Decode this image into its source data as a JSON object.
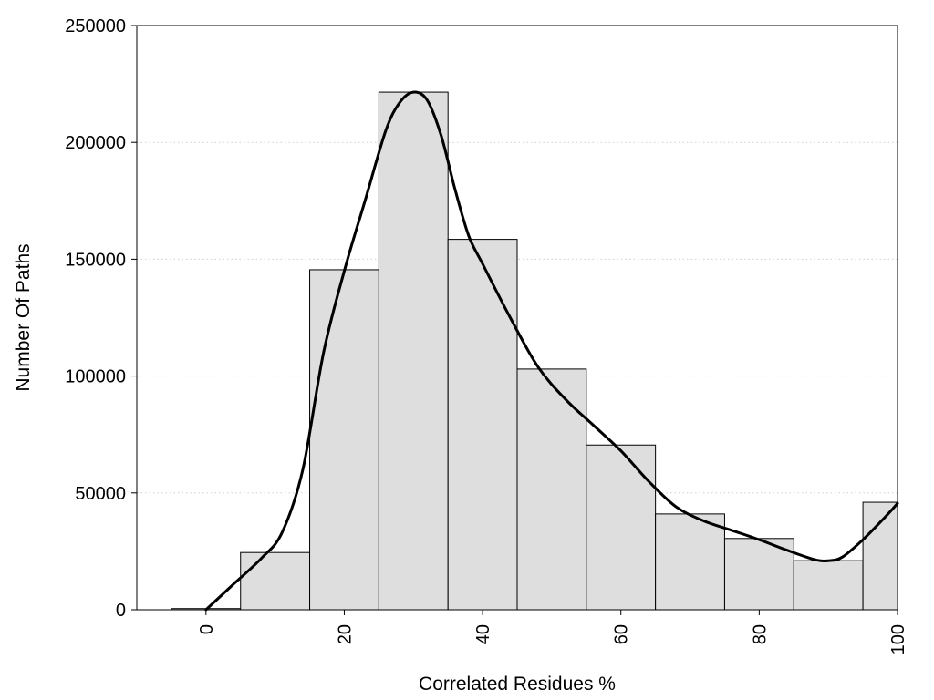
{
  "chart_data": {
    "type": "bar",
    "subtype": "histogram with density curve",
    "title": "",
    "xlabel": "Correlated Residues %",
    "ylabel": "Number Of Paths",
    "xlim": [
      -10,
      100
    ],
    "ylim": [
      0,
      250000
    ],
    "x_ticks": [
      0,
      20,
      40,
      60,
      80,
      100
    ],
    "x_tick_labels": [
      "0",
      "20",
      "40",
      "60",
      "80",
      "100"
    ],
    "y_ticks": [
      0,
      50000,
      100000,
      150000,
      200000,
      250000
    ],
    "y_tick_labels": [
      "0",
      "50000",
      "100000",
      "150000",
      "200000",
      "250000"
    ],
    "grid": "horizontal dotted",
    "bin_width": 10,
    "bins": [
      {
        "center": 0,
        "value": 500
      },
      {
        "center": 10,
        "value": 24500
      },
      {
        "center": 20,
        "value": 145500
      },
      {
        "center": 30,
        "value": 221500
      },
      {
        "center": 40,
        "value": 158500
      },
      {
        "center": 50,
        "value": 103000
      },
      {
        "center": 60,
        "value": 70500
      },
      {
        "center": 70,
        "value": 41000
      },
      {
        "center": 80,
        "value": 30500
      },
      {
        "center": 90,
        "value": 21000
      },
      {
        "center": 100,
        "value": 46000
      }
    ],
    "density_curve": {
      "x": [
        0,
        4,
        8,
        11,
        14,
        17,
        20,
        23,
        26,
        28,
        30,
        32,
        34,
        36,
        38,
        40,
        44,
        48,
        52,
        56,
        60,
        64,
        68,
        72,
        76,
        80,
        84,
        88,
        90,
        92,
        95,
        98,
        100
      ],
      "y": [
        0,
        11000,
        22000,
        33000,
        60000,
        110000,
        145000,
        175000,
        205000,
        217000,
        221500,
        218000,
        203000,
        180000,
        160000,
        148000,
        125000,
        104000,
        90000,
        79000,
        68000,
        55000,
        44000,
        38000,
        34000,
        30000,
        25500,
        21500,
        21000,
        22500,
        30000,
        39000,
        45500
      ]
    },
    "colors": {
      "bar_fill": "#dedede",
      "bar_stroke": "#000000",
      "curve": "#000000"
    }
  }
}
